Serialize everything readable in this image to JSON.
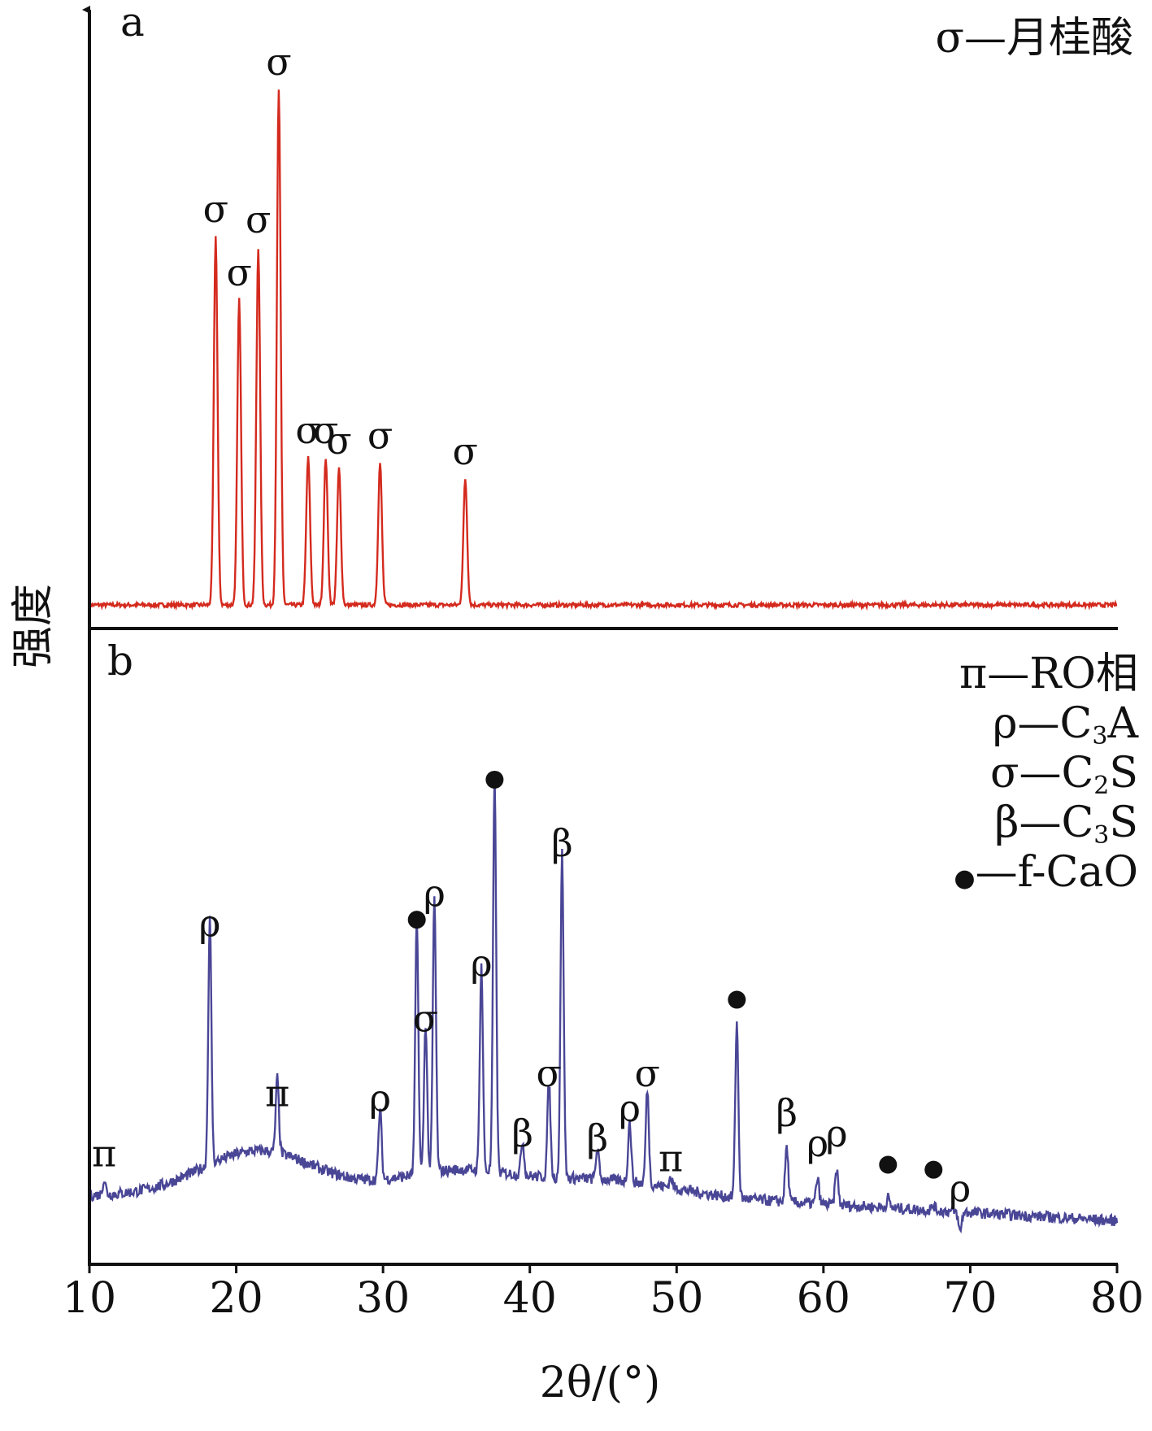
{
  "chart_data": {
    "type": "line",
    "xlabel": "2θ/(°)",
    "ylabel": "强度",
    "xlim": [
      10,
      80
    ],
    "x_ticks": [
      "10",
      "20",
      "30",
      "40",
      "50",
      "60",
      "70",
      "80"
    ],
    "grid": false,
    "panels": [
      {
        "id": "a",
        "panel_label": "a",
        "series_color": "#d42a1e",
        "legend": [
          {
            "symbol": "σ",
            "text": "—月桂酸"
          }
        ],
        "baseline": 0.02,
        "peaks": [
          {
            "x": 18.6,
            "y": 0.72,
            "label": "σ"
          },
          {
            "x": 20.2,
            "y": 0.6,
            "label": "σ"
          },
          {
            "x": 21.5,
            "y": 0.7,
            "label": "σ"
          },
          {
            "x": 22.9,
            "y": 1.0,
            "label": "σ"
          },
          {
            "x": 24.9,
            "y": 0.3,
            "label": "σ"
          },
          {
            "x": 26.1,
            "y": 0.3,
            "label": "σ"
          },
          {
            "x": 27.0,
            "y": 0.28,
            "label": "σ"
          },
          {
            "x": 29.8,
            "y": 0.29,
            "label": "σ"
          },
          {
            "x": 35.6,
            "y": 0.26,
            "label": "σ"
          }
        ]
      },
      {
        "id": "b",
        "panel_label": "b",
        "series_color": "#4a4696",
        "legend": [
          {
            "symbol": "π",
            "text": "—RO相"
          },
          {
            "symbol": "ρ",
            "text": "—C",
            "sub": "3",
            "tail": "A"
          },
          {
            "symbol": "σ",
            "text": "—C",
            "sub": "2",
            "tail": "S"
          },
          {
            "symbol": "β",
            "text": "—C",
            "sub": "3",
            "tail": "S"
          },
          {
            "symbol": "●",
            "text": "—f-CaO"
          }
        ],
        "baseline": 0.08,
        "peaks": [
          {
            "x": 11.0,
            "y": 0.11,
            "label": "π"
          },
          {
            "x": 18.2,
            "y": 0.57,
            "label": "ρ"
          },
          {
            "x": 22.8,
            "y": 0.23,
            "label": "π"
          },
          {
            "x": 29.8,
            "y": 0.22,
            "label": "ρ"
          },
          {
            "x": 32.3,
            "y": 0.59,
            "label": "●"
          },
          {
            "x": 32.9,
            "y": 0.38,
            "label": "σ"
          },
          {
            "x": 33.5,
            "y": 0.63,
            "label": "ρ"
          },
          {
            "x": 36.7,
            "y": 0.49,
            "label": "ρ"
          },
          {
            "x": 37.6,
            "y": 0.87,
            "label": "●"
          },
          {
            "x": 39.5,
            "y": 0.15,
            "label": "β"
          },
          {
            "x": 41.3,
            "y": 0.27,
            "label": "σ"
          },
          {
            "x": 42.2,
            "y": 0.73,
            "label": "β"
          },
          {
            "x": 44.6,
            "y": 0.14,
            "label": "β"
          },
          {
            "x": 46.8,
            "y": 0.2,
            "label": "ρ"
          },
          {
            "x": 48.0,
            "y": 0.27,
            "label": "σ"
          },
          {
            "x": 49.6,
            "y": 0.1,
            "label": "π"
          },
          {
            "x": 54.1,
            "y": 0.43,
            "label": "●"
          },
          {
            "x": 57.5,
            "y": 0.19,
            "label": "β"
          },
          {
            "x": 59.6,
            "y": 0.13,
            "label": "ρ"
          },
          {
            "x": 60.9,
            "y": 0.15,
            "label": "ρ"
          },
          {
            "x": 64.4,
            "y": 0.1,
            "label": "●"
          },
          {
            "x": 67.5,
            "y": 0.09,
            "label": "●"
          },
          {
            "x": 69.3,
            "y": 0.04,
            "label": "ρ"
          }
        ]
      }
    ]
  }
}
